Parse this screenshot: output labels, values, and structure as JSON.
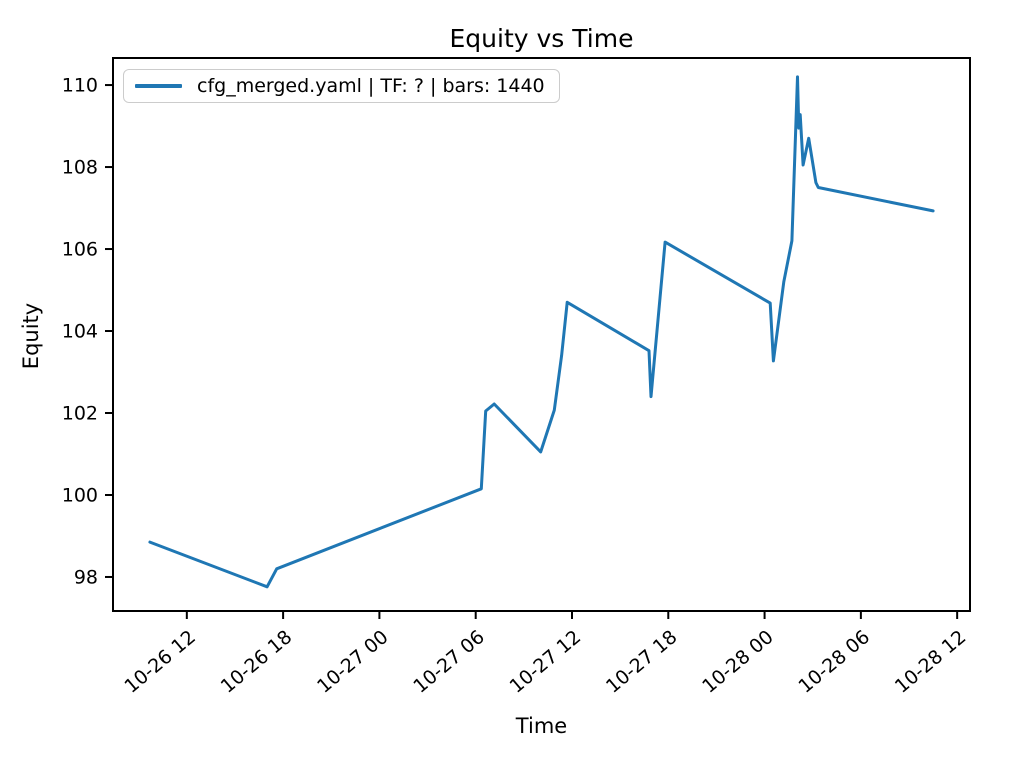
{
  "chart_data": {
    "type": "line",
    "title": "Equity vs Time",
    "xlabel": "Time",
    "ylabel": "Equity",
    "grid": false,
    "legend_position": "upper left",
    "x_encoding": "hours since 10-26 00:00",
    "xlim_hours": [
      7.4,
      60.8
    ],
    "ylim": [
      97.17,
      110.66
    ],
    "x_ticks": [
      {
        "hour": 12,
        "label": "10-26 12"
      },
      {
        "hour": 18,
        "label": "10-26 18"
      },
      {
        "hour": 24,
        "label": "10-27 00"
      },
      {
        "hour": 30,
        "label": "10-27 06"
      },
      {
        "hour": 36,
        "label": "10-27 12"
      },
      {
        "hour": 42,
        "label": "10-27 18"
      },
      {
        "hour": 48,
        "label": "10-28 00"
      },
      {
        "hour": 54,
        "label": "10-28 06"
      },
      {
        "hour": 60,
        "label": "10-28 12"
      }
    ],
    "y_ticks": [
      98,
      100,
      102,
      104,
      106,
      108,
      110
    ],
    "series": [
      {
        "name": "cfg_merged.yaml | TF: ? | bars: 1440",
        "color": "#1f77b4",
        "line_width": 3,
        "points": [
          [
            9.7,
            98.85
          ],
          [
            17.0,
            97.76
          ],
          [
            17.6,
            98.2
          ],
          [
            30.35,
            100.15
          ],
          [
            30.62,
            102.05
          ],
          [
            31.15,
            102.22
          ],
          [
            34.05,
            101.05
          ],
          [
            34.9,
            102.07
          ],
          [
            35.35,
            103.4
          ],
          [
            35.7,
            104.7
          ],
          [
            40.8,
            103.52
          ],
          [
            40.92,
            102.4
          ],
          [
            41.8,
            106.17
          ],
          [
            48.35,
            104.68
          ],
          [
            48.55,
            103.27
          ],
          [
            49.2,
            105.2
          ],
          [
            49.7,
            106.2
          ],
          [
            50.05,
            110.2
          ],
          [
            50.13,
            108.95
          ],
          [
            50.22,
            109.28
          ],
          [
            50.4,
            108.05
          ],
          [
            50.75,
            108.7
          ],
          [
            51.2,
            107.62
          ],
          [
            51.35,
            107.5
          ],
          [
            58.5,
            106.93
          ]
        ]
      }
    ],
    "axes_color": "#000000",
    "tick_font_px": 19
  }
}
